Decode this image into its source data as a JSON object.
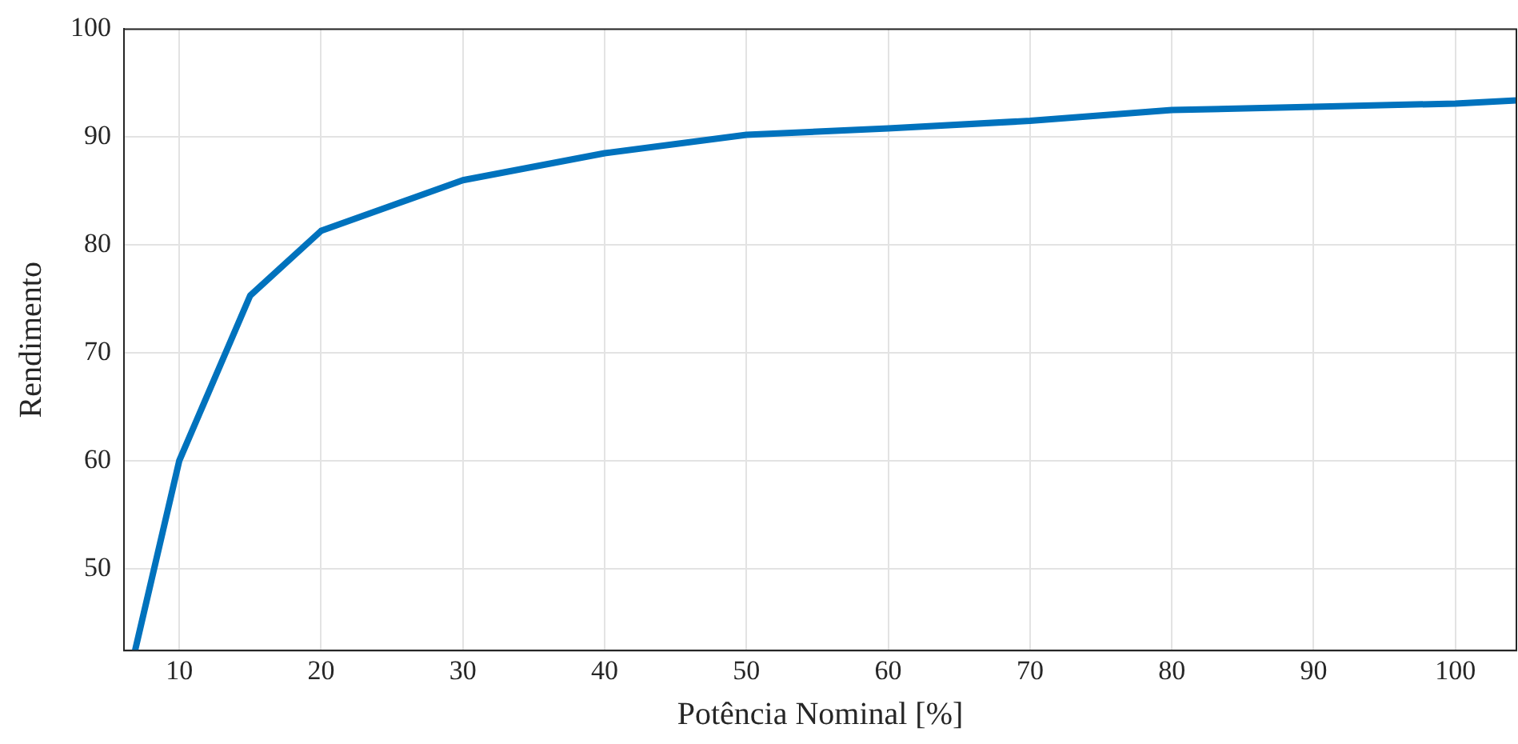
{
  "chart_data": {
    "type": "line",
    "xlabel": "Potência Nominal [%]",
    "ylabel": "Rendimento",
    "series": [
      {
        "color": "#0072bd",
        "x": [
          6.9,
          10,
          15,
          20,
          30,
          40,
          50,
          60,
          70,
          80,
          90,
          100,
          104.3
        ],
        "values": [
          42.5,
          60,
          75.3,
          81.3,
          86,
          88.5,
          90.2,
          90.8,
          91.5,
          92.5,
          92.8,
          93.1,
          93.4
        ]
      }
    ],
    "xlim": [
      6.1,
      104.3
    ],
    "xticks": [
      10,
      20,
      30,
      40,
      50,
      60,
      70,
      80,
      90,
      100
    ],
    "ylim": [
      42.4,
      100
    ],
    "yticks": [
      50,
      60,
      70,
      80,
      90,
      100
    ],
    "grid": true,
    "legend": false,
    "marker": "none",
    "line_style": "solid"
  }
}
